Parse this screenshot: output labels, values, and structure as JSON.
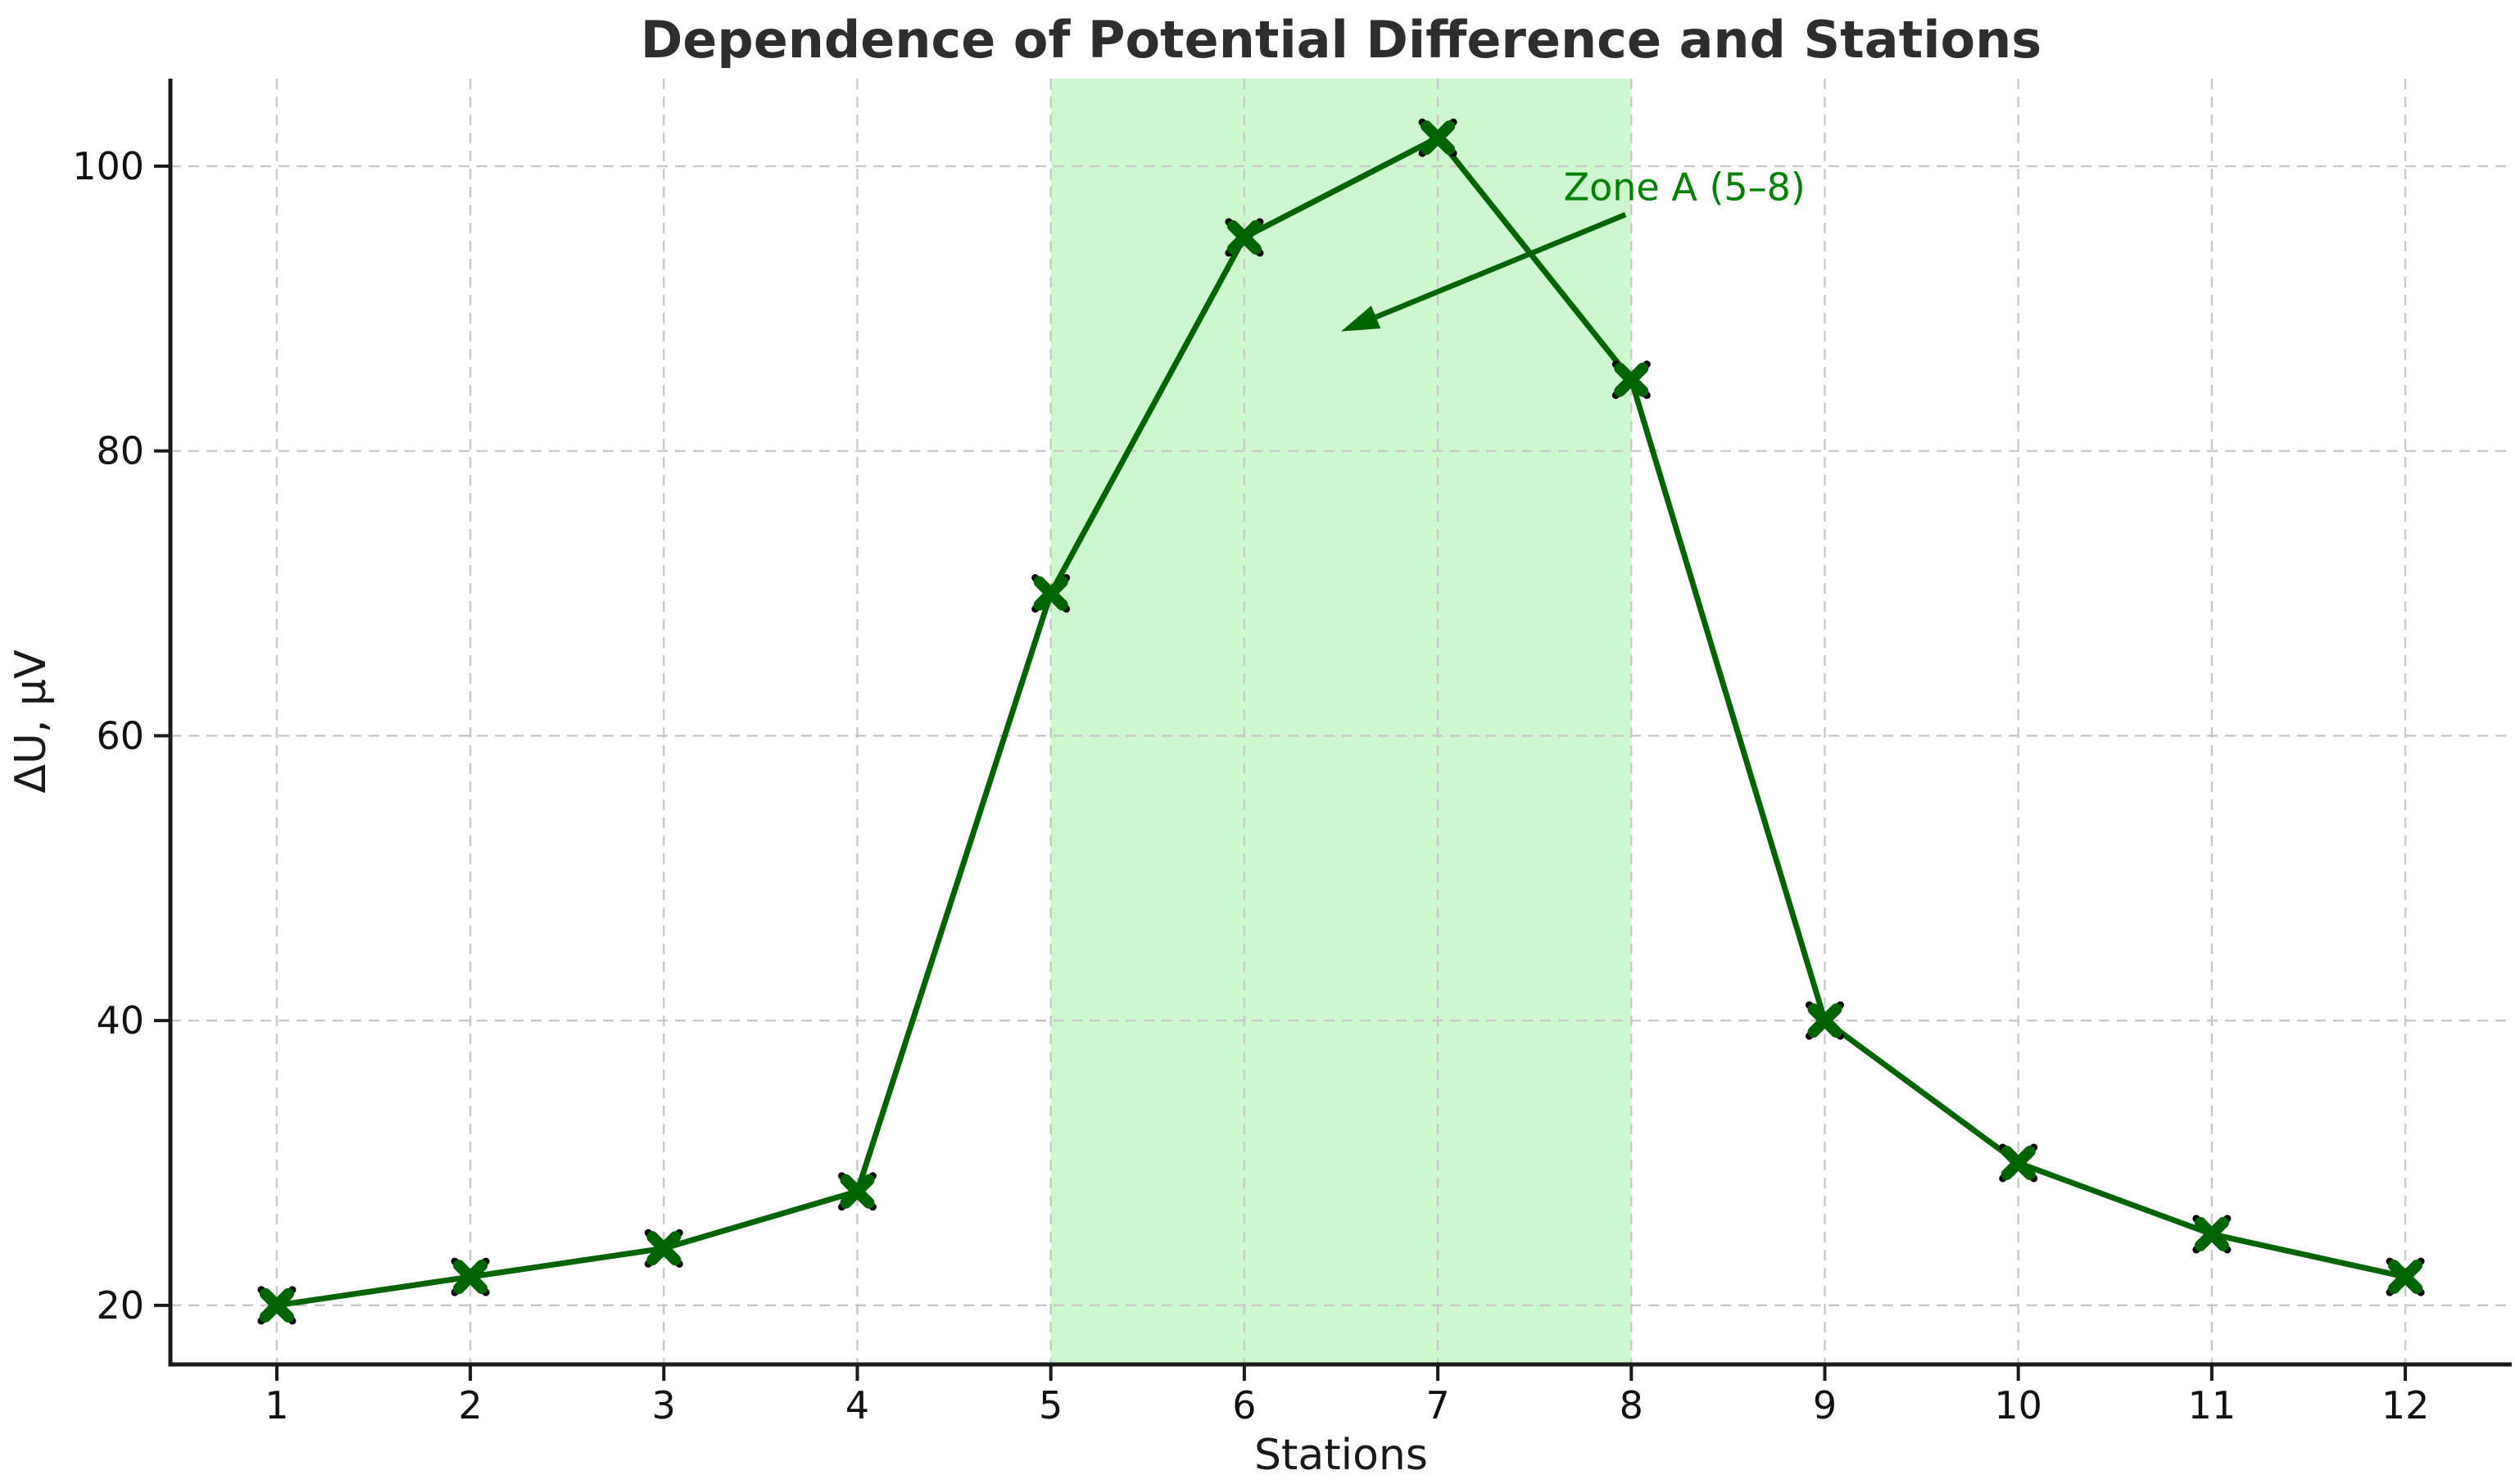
{
  "figure": {
    "title": "Dependence of Potential Difference and Stations",
    "xlabel": "Stations",
    "ylabel": "ΔU, μV"
  },
  "chart_data": {
    "type": "line",
    "title": "Dependence of Potential Difference and Stations",
    "xlabel": "Stations",
    "ylabel": "ΔU, μV",
    "x": [
      1,
      2,
      3,
      4,
      5,
      6,
      7,
      8,
      9,
      10,
      11,
      12
    ],
    "y": [
      20,
      22,
      24,
      28,
      70,
      95,
      102,
      85,
      40,
      30,
      25,
      22
    ],
    "xticks": [
      1,
      2,
      3,
      4,
      5,
      6,
      7,
      8,
      9,
      10,
      11,
      12
    ],
    "yticks": [
      20,
      40,
      60,
      80,
      100
    ],
    "xlim": [
      0.45,
      12.55
    ],
    "ylim": [
      15.85,
      106.15
    ],
    "grid": true,
    "grid_linestyle": "dashed",
    "legend": false,
    "line_color": "#006400",
    "line_width": 7,
    "marker": "X",
    "marker_fill_color": "#006400",
    "marker_edge_color": "#000000",
    "shaded_region": {
      "x_from": 5,
      "x_to": 8,
      "fill_color": "rgba(144,238,144,0.45)"
    },
    "annotation": {
      "text": "Zone A (5–8)",
      "text_color": "#008000",
      "arrow_color": "#006400",
      "text_anchor_data": [
        7.65,
        97.6
      ],
      "arrow_tail_data": [
        7.97,
        96.6
      ],
      "arrow_tip_data": [
        6.5,
        88.4
      ]
    }
  }
}
